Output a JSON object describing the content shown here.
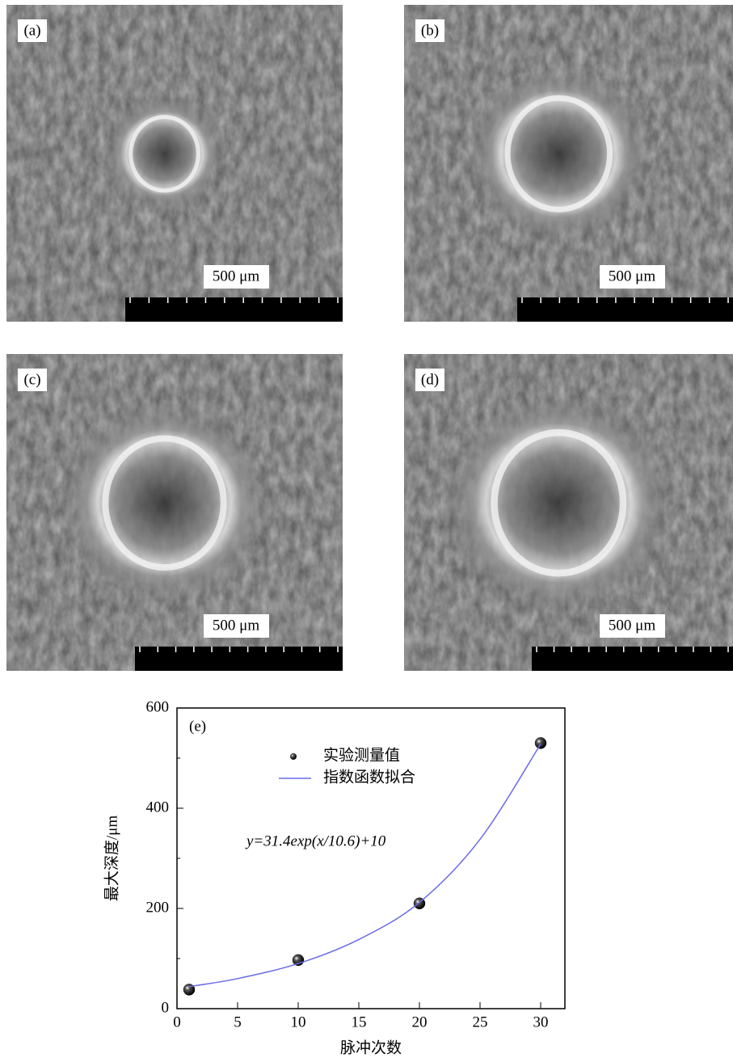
{
  "panels": [
    {
      "label": "(a)",
      "scale": "500 μm"
    },
    {
      "label": "(b)",
      "scale": "500 μm"
    },
    {
      "label": "(c)",
      "scale": "500 μm"
    },
    {
      "label": "(d)",
      "scale": "500 μm"
    }
  ],
  "chart_data": {
    "type": "scatter",
    "panel_label": "(e)",
    "x_label": "脉冲次数",
    "y_label": "最大深度/μm",
    "annotation": "y=31.4exp(x/10.6)+10",
    "xlim": [
      0,
      32
    ],
    "xticks": [
      0,
      5,
      10,
      15,
      20,
      25,
      30
    ],
    "ylim": [
      0,
      600
    ],
    "yticks": [
      0,
      200,
      400,
      600
    ],
    "grid": false,
    "legend": "upper center",
    "series": [
      {
        "name": "实验测量值",
        "type": "scatter",
        "color": "#000000",
        "x": [
          1,
          10,
          20,
          30
        ],
        "values": [
          38,
          97,
          210,
          530
        ]
      },
      {
        "name": "指数函数拟合",
        "type": "line",
        "color": "#6a6ae8",
        "x": [
          1,
          5,
          10,
          15,
          20,
          25,
          30
        ],
        "values": [
          44,
          60,
          90,
          138,
          212,
          338,
          528
        ]
      }
    ]
  }
}
